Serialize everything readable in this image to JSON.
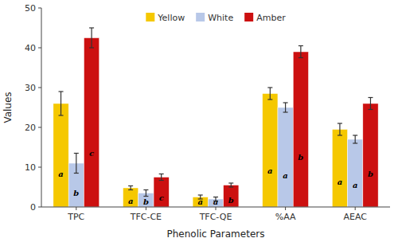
{
  "chart_data": {
    "type": "bar",
    "categories": [
      "TPC",
      "TFC-CE",
      "TFC-QE",
      "%AA",
      "AEAC"
    ],
    "series": [
      {
        "name": "Yellow",
        "color": "#F5C800",
        "values": [
          26.0,
          4.8,
          2.5,
          28.5,
          19.5
        ],
        "errors": [
          3.0,
          0.5,
          0.5,
          1.5,
          1.5
        ],
        "annotations": [
          "a",
          "a",
          "a",
          "a",
          "a"
        ]
      },
      {
        "name": "White",
        "color": "#B8C8E8",
        "values": [
          11.0,
          3.5,
          2.0,
          25.0,
          17.0
        ],
        "errors": [
          2.5,
          0.8,
          0.5,
          1.2,
          1.0
        ],
        "annotations": [
          "b",
          "b",
          "a",
          "a",
          "a"
        ]
      },
      {
        "name": "Amber",
        "color": "#CC1010",
        "values": [
          42.5,
          7.5,
          5.5,
          39.0,
          26.0
        ],
        "errors": [
          2.5,
          0.8,
          0.5,
          1.5,
          1.5
        ],
        "annotations": [
          "c",
          "c",
          "b",
          "b",
          "b"
        ]
      }
    ],
    "xlabel": "Phenolic Parameters",
    "ylabel": "Values",
    "ylim": [
      0,
      50
    ],
    "yticks": [
      0,
      10,
      20,
      30,
      40,
      50
    ],
    "grid": false,
    "legend": "upper center"
  }
}
